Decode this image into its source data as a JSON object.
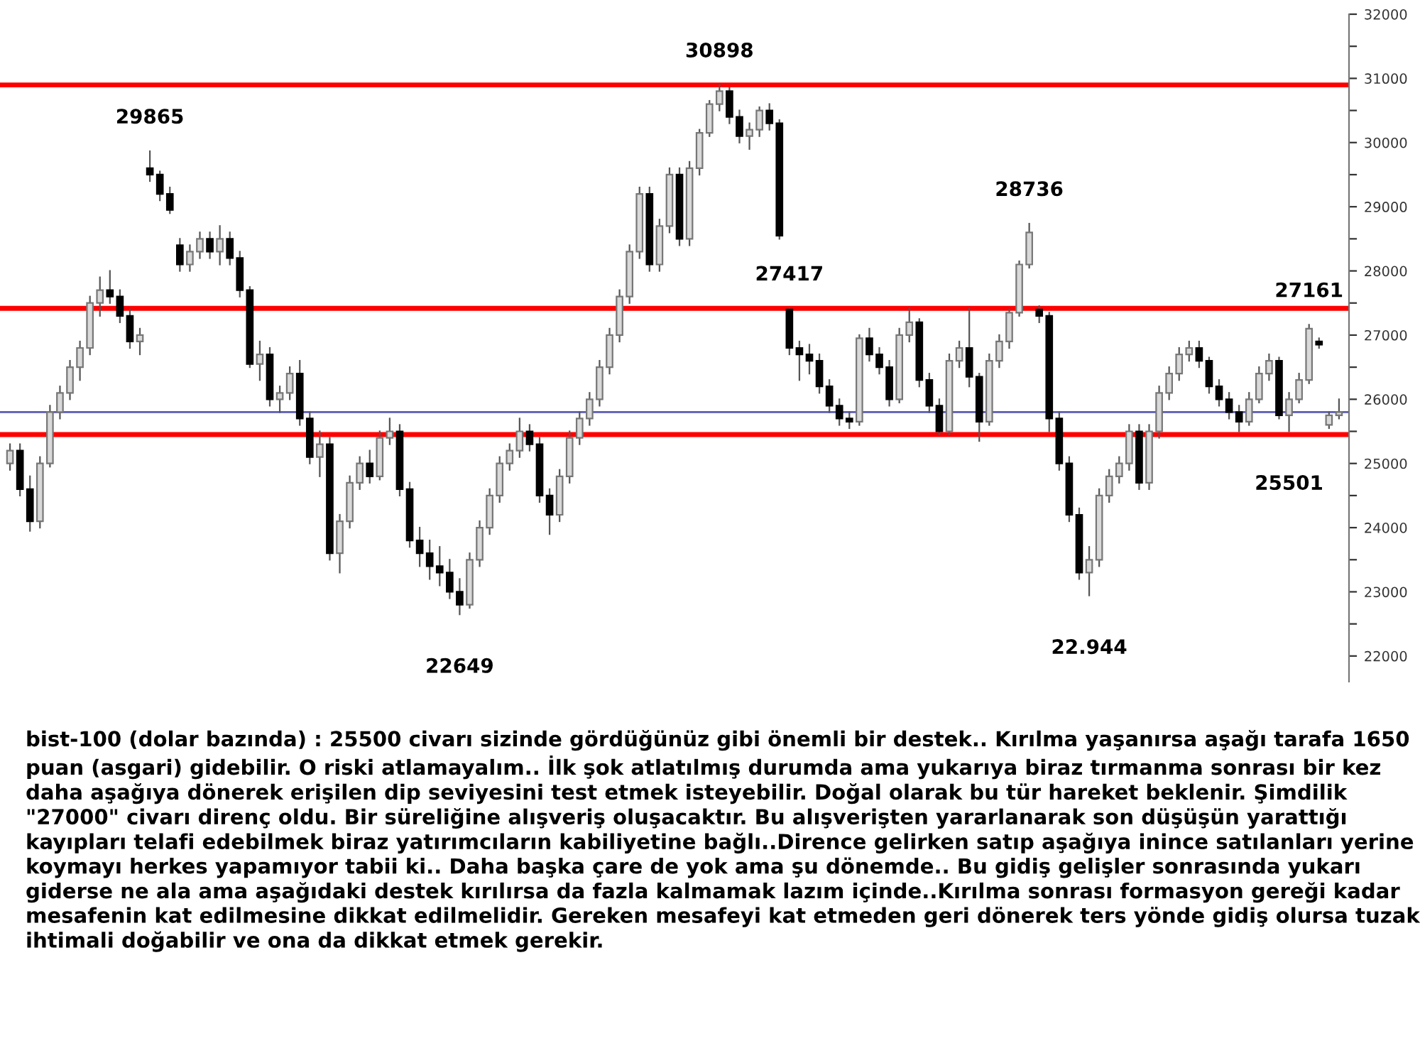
{
  "chart_data": {
    "type": "candlestick",
    "categories": [
      null,
      null,
      null,
      null,
      null,
      null,
      null,
      null,
      null,
      null,
      null,
      null,
      null,
      null,
      null,
      null,
      null,
      null,
      null,
      null,
      null,
      null,
      null,
      null,
      null,
      null,
      null,
      null,
      null,
      null,
      null,
      null,
      null,
      null,
      null,
      null,
      null,
      null,
      null,
      null,
      null,
      null,
      null,
      null,
      null,
      null,
      null,
      null,
      null,
      null,
      null,
      null,
      null,
      null,
      null,
      null,
      null,
      null,
      null,
      null,
      null,
      null,
      null,
      null,
      null,
      null,
      null,
      null,
      null,
      null,
      null,
      null,
      null,
      null,
      null,
      null,
      null,
      null,
      null,
      null,
      null,
      null,
      null,
      null,
      null,
      null,
      null,
      null,
      null,
      null,
      null,
      null,
      null,
      null,
      null,
      null,
      null,
      null,
      null,
      null,
      null,
      null,
      null,
      null,
      null,
      null,
      null,
      null,
      null,
      null,
      null,
      null,
      null,
      null,
      null,
      null,
      null,
      null,
      null,
      null,
      null,
      null,
      null,
      null,
      null,
      null,
      null,
      null,
      null,
      null,
      null,
      null,
      null,
      null
    ],
    "ohlc": [
      [
        25000,
        25300,
        24900,
        25200
      ],
      [
        25200,
        25300,
        24500,
        24600
      ],
      [
        24600,
        24800,
        23950,
        24100
      ],
      [
        24100,
        25100,
        24000,
        25000
      ],
      [
        25000,
        25900,
        24950,
        25800
      ],
      [
        25800,
        26200,
        25700,
        26100
      ],
      [
        26100,
        26600,
        26000,
        26500
      ],
      [
        26500,
        26900,
        26300,
        26800
      ],
      [
        26800,
        27600,
        26700,
        27500
      ],
      [
        27500,
        27900,
        27300,
        27700
      ],
      [
        27700,
        28000,
        27500,
        27600
      ],
      [
        27600,
        27700,
        27200,
        27300
      ],
      [
        27300,
        27400,
        26800,
        26900
      ],
      [
        26900,
        27100,
        26700,
        27000
      ],
      [
        29600,
        29865,
        29400,
        29500
      ],
      [
        29500,
        29550,
        29100,
        29200
      ],
      [
        29200,
        29300,
        28900,
        28950
      ],
      [
        28400,
        28500,
        28000,
        28100
      ],
      [
        28100,
        28400,
        28000,
        28300
      ],
      [
        28300,
        28600,
        28200,
        28500
      ],
      [
        28500,
        28600,
        28200,
        28300
      ],
      [
        28300,
        28700,
        28100,
        28500
      ],
      [
        28500,
        28600,
        28100,
        28200
      ],
      [
        28200,
        28300,
        27600,
        27700
      ],
      [
        27700,
        27750,
        26500,
        26550
      ],
      [
        26550,
        26900,
        26300,
        26700
      ],
      [
        26700,
        26800,
        25900,
        26000
      ],
      [
        26000,
        26200,
        25800,
        26100
      ],
      [
        26100,
        26500,
        26000,
        26400
      ],
      [
        26400,
        26600,
        25600,
        25700
      ],
      [
        25700,
        25800,
        25000,
        25100
      ],
      [
        25100,
        25500,
        24800,
        25300
      ],
      [
        25300,
        25400,
        23500,
        23600
      ],
      [
        23600,
        24200,
        23300,
        24100
      ],
      [
        24100,
        24800,
        24000,
        24700
      ],
      [
        24700,
        25100,
        24600,
        25000
      ],
      [
        25000,
        25200,
        24700,
        24800
      ],
      [
        24800,
        25500,
        24750,
        25400
      ],
      [
        25400,
        25700,
        25300,
        25500
      ],
      [
        25500,
        25600,
        24500,
        24600
      ],
      [
        24600,
        24700,
        23700,
        23800
      ],
      [
        23800,
        24000,
        23400,
        23600
      ],
      [
        23600,
        23800,
        23200,
        23400
      ],
      [
        23400,
        23700,
        23100,
        23300
      ],
      [
        23300,
        23500,
        22900,
        23000
      ],
      [
        23000,
        23200,
        22649,
        22800
      ],
      [
        22800,
        23600,
        22750,
        23500
      ],
      [
        23500,
        24100,
        23400,
        24000
      ],
      [
        24000,
        24600,
        23900,
        24500
      ],
      [
        24500,
        25100,
        24400,
        25000
      ],
      [
        25000,
        25300,
        24900,
        25200
      ],
      [
        25200,
        25700,
        25100,
        25500
      ],
      [
        25500,
        25600,
        25200,
        25300
      ],
      [
        25300,
        25400,
        24400,
        24500
      ],
      [
        24500,
        24600,
        23900,
        24200
      ],
      [
        24200,
        24900,
        24100,
        24800
      ],
      [
        24800,
        25500,
        24700,
        25400
      ],
      [
        25400,
        25800,
        25300,
        25700
      ],
      [
        25700,
        26100,
        25600,
        26000
      ],
      [
        26000,
        26600,
        25900,
        26500
      ],
      [
        26500,
        27100,
        26400,
        27000
      ],
      [
        27000,
        27700,
        26900,
        27600
      ],
      [
        27600,
        28400,
        27500,
        28300
      ],
      [
        28300,
        29300,
        28200,
        29200
      ],
      [
        29200,
        29300,
        28000,
        28100
      ],
      [
        28100,
        28800,
        28000,
        28700
      ],
      [
        28700,
        29600,
        28600,
        29500
      ],
      [
        29500,
        29600,
        28400,
        28500
      ],
      [
        28500,
        29700,
        28400,
        29600
      ],
      [
        29600,
        30200,
        29500,
        30150
      ],
      [
        30150,
        30650,
        30100,
        30600
      ],
      [
        30600,
        30898,
        30500,
        30800
      ],
      [
        30800,
        30850,
        30300,
        30400
      ],
      [
        30400,
        30500,
        30000,
        30100
      ],
      [
        30100,
        30300,
        29900,
        30200
      ],
      [
        30200,
        30550,
        30100,
        30500
      ],
      [
        30500,
        30600,
        30200,
        30300
      ],
      [
        30300,
        30350,
        28500,
        28550
      ],
      [
        27400,
        27417,
        26700,
        26800
      ],
      [
        26800,
        26900,
        26300,
        26700
      ],
      [
        26700,
        26850,
        26400,
        26600
      ],
      [
        26600,
        26700,
        26100,
        26200
      ],
      [
        26200,
        26300,
        25800,
        25900
      ],
      [
        25900,
        26000,
        25600,
        25700
      ],
      [
        25700,
        25800,
        25550,
        25650
      ],
      [
        25650,
        27000,
        25600,
        26950
      ],
      [
        26950,
        27100,
        26600,
        26700
      ],
      [
        26700,
        26800,
        26400,
        26500
      ],
      [
        26500,
        26600,
        25900,
        26000
      ],
      [
        26000,
        27100,
        25950,
        27000
      ],
      [
        27000,
        27417,
        26900,
        27200
      ],
      [
        27200,
        27250,
        26200,
        26300
      ],
      [
        26300,
        26400,
        25800,
        25900
      ],
      [
        25900,
        26000,
        25450,
        25500
      ],
      [
        25500,
        26700,
        25450,
        26600
      ],
      [
        26600,
        26900,
        26500,
        26800
      ],
      [
        26800,
        27417,
        26200,
        26350
      ],
      [
        26350,
        26400,
        25350,
        25650
      ],
      [
        25650,
        26700,
        25600,
        26600
      ],
      [
        26600,
        27000,
        26500,
        26900
      ],
      [
        26900,
        27400,
        26800,
        27350
      ],
      [
        27350,
        28150,
        27300,
        28100
      ],
      [
        28100,
        28736,
        28050,
        28600
      ],
      [
        27400,
        27450,
        27200,
        27300
      ],
      [
        27300,
        27350,
        25500,
        25700
      ],
      [
        25700,
        25800,
        24900,
        25000
      ],
      [
        25000,
        25100,
        24100,
        24200
      ],
      [
        24200,
        24300,
        23200,
        23300
      ],
      [
        23300,
        23700,
        22944,
        23500
      ],
      [
        23500,
        24600,
        23400,
        24500
      ],
      [
        24500,
        24900,
        24400,
        24800
      ],
      [
        24800,
        25100,
        24700,
        25000
      ],
      [
        25000,
        25600,
        24900,
        25500
      ],
      [
        25500,
        25600,
        24600,
        24700
      ],
      [
        24700,
        25600,
        24600,
        25500
      ],
      [
        25500,
        26200,
        25400,
        26100
      ],
      [
        26100,
        26500,
        26000,
        26400
      ],
      [
        26400,
        26800,
        26300,
        26700
      ],
      [
        26700,
        26900,
        26600,
        26800
      ],
      [
        26800,
        26900,
        26500,
        26600
      ],
      [
        26600,
        26650,
        26100,
        26200
      ],
      [
        26200,
        26300,
        25900,
        26000
      ],
      [
        26000,
        26100,
        25700,
        25800
      ],
      [
        25800,
        25900,
        25500,
        25650
      ],
      [
        25650,
        26100,
        25600,
        26000
      ],
      [
        26000,
        26500,
        25950,
        26400
      ],
      [
        26400,
        26700,
        26300,
        26600
      ],
      [
        26600,
        26650,
        25700,
        25750
      ],
      [
        25750,
        26100,
        25501,
        26000
      ],
      [
        26000,
        26400,
        25950,
        26300
      ],
      [
        26300,
        27161,
        26250,
        27100
      ],
      [
        26900,
        26950,
        26800,
        26850
      ],
      [
        25600,
        25800,
        25550,
        25750
      ],
      [
        25750,
        26000,
        25700,
        25800
      ]
    ],
    "ref_lines": [
      {
        "axis": "y",
        "value": 30898,
        "color": "#ff0000"
      },
      {
        "axis": "y",
        "value": 27417,
        "color": "#ff0000"
      },
      {
        "axis": "y",
        "value": 25450,
        "color": "#ff0000"
      },
      {
        "axis": "y",
        "value": 25800,
        "color": "#5a5ab4"
      }
    ],
    "ylim": [
      21600,
      32000
    ],
    "yticks": [
      22000,
      {
        "value": 22500,
        "label": null
      },
      23000,
      {
        "value": 23500,
        "label": null
      },
      24000,
      {
        "value": 24500,
        "label": null
      },
      25000,
      {
        "value": 25500,
        "label": null
      },
      26000,
      {
        "value": 26500,
        "label": null
      },
      27000,
      {
        "value": 27500,
        "label": null
      },
      28000,
      {
        "value": 28500,
        "label": null
      },
      29000,
      {
        "value": 29500,
        "label": null
      },
      30000,
      {
        "value": 30500,
        "label": null
      },
      31000,
      {
        "value": 31500,
        "label": null
      },
      32000
    ],
    "tick_labels": "y",
    "grid": false,
    "legend": false,
    "annotations": [
      {
        "text": "29865",
        "y": 29865
      },
      {
        "text": "30898",
        "y": 30898
      },
      {
        "text": "22649",
        "y": 22649
      },
      {
        "text": "27417",
        "y": 27417
      },
      {
        "text": "28736",
        "y": 28736
      },
      {
        "text": "22.944",
        "y": 22944
      },
      {
        "text": "27161",
        "y": 27161
      },
      {
        "text": "25501",
        "y": 25501
      },
      "bist-100 (dolar bazında) : 25500 civarı sizinde gördüğünüz gibi önemli bir destek.. Kırılma yaşanırsa aşağı tarafa 1650 puan (asgari) gidebilir. O riski atlamayalım.. İlk şok atlatılmış durumda ama yukarıya biraz tırmanma sonrası bir kez daha aşağıya dönerek erişilen dip seviyesini test etmek isteyebilir. Doğal olarak bu tür hareket beklenir. Şimdilik \"27000\" civarı direnç oldu. Bir süreliğine alışveriş oluşacaktır. Bu alışverişten yararlanarak son düşüşün yarattığı kayıpları telafi edebilmek biraz yatırımcıların kabiliyetine bağlı..Dirence gelirken satıp aşağıya inince satılanları yerine koymayı herkes yapamıyor tabii ki.. Daha başka çare de yok ama şu dönemde.. Bu gidiş gelişler sonrasında yukarı giderse ne ala ama aşağıdaki destek kırılırsa da fazla kalmamak lazım içinde..Kırılma sonrası formasyon gereği kadar mesafenin kat edilmesine dikkat edilmelidir. Gereken mesafeyi kat etmeden geri dönerek ters yönde gidiş olursa tuzak ihtimali doğabilir ve ona da dikkat etmek gerekir."
    ]
  }
}
